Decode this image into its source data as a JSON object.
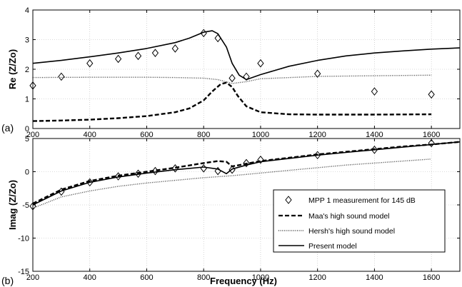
{
  "chart_data": [
    {
      "type": "line",
      "panel_label": "(a)",
      "ylabel": "Re (Z/Zo)",
      "xlabel": "",
      "xlim": [
        200,
        1700
      ],
      "ylim": [
        0,
        4
      ],
      "xticks": [
        200,
        400,
        600,
        800,
        1000,
        1200,
        1400,
        1600
      ],
      "yticks": [
        0,
        1,
        2,
        3,
        4
      ],
      "grid": true,
      "series": [
        {
          "name": "MPP 1 measurement for 145 dB",
          "style": "diamond",
          "x": [
            200,
            300,
            400,
            500,
            570,
            630,
            700,
            800,
            850,
            900,
            950,
            1000,
            1200,
            1400,
            1600
          ],
          "y": [
            1.45,
            1.75,
            2.2,
            2.35,
            2.45,
            2.55,
            2.7,
            3.22,
            3.05,
            1.7,
            1.75,
            2.2,
            1.85,
            1.25,
            1.15
          ]
        },
        {
          "name": "Maa's high sound model",
          "style": "dashed",
          "x": [
            200,
            300,
            400,
            500,
            600,
            700,
            750,
            800,
            830,
            860,
            880,
            900,
            920,
            950,
            1000,
            1100,
            1200,
            1400,
            1600
          ],
          "y": [
            0.25,
            0.27,
            0.3,
            0.35,
            0.42,
            0.55,
            0.68,
            0.95,
            1.25,
            1.5,
            1.55,
            1.4,
            1.1,
            0.75,
            0.55,
            0.48,
            0.47,
            0.47,
            0.48
          ]
        },
        {
          "name": "Hersh's high sound model",
          "style": "dotted",
          "x": [
            200,
            400,
            600,
            700,
            800,
            850,
            900,
            950,
            1000,
            1200,
            1400,
            1600
          ],
          "y": [
            1.72,
            1.73,
            1.73,
            1.72,
            1.7,
            1.65,
            1.52,
            1.58,
            1.68,
            1.76,
            1.78,
            1.8
          ]
        },
        {
          "name": "Present model",
          "style": "solid",
          "x": [
            200,
            300,
            400,
            500,
            600,
            700,
            750,
            800,
            830,
            850,
            880,
            900,
            925,
            950,
            1000,
            1100,
            1200,
            1300,
            1400,
            1500,
            1600,
            1700
          ],
          "y": [
            2.2,
            2.3,
            2.42,
            2.55,
            2.7,
            2.9,
            3.05,
            3.25,
            3.3,
            3.2,
            2.75,
            2.2,
            1.8,
            1.65,
            1.82,
            2.1,
            2.3,
            2.45,
            2.55,
            2.62,
            2.68,
            2.72
          ]
        }
      ]
    },
    {
      "type": "line",
      "panel_label": "(b)",
      "ylabel": "Imag (Z/Zo)",
      "xlabel": "Frequency (Hz)",
      "xlim": [
        200,
        1700
      ],
      "ylim": [
        -15,
        5
      ],
      "xticks": [
        200,
        400,
        600,
        800,
        1000,
        1200,
        1400,
        1600
      ],
      "yticks": [
        -15,
        -10,
        -5,
        0,
        5
      ],
      "grid": true,
      "legend_position": "lower-right",
      "series": [
        {
          "name": "MPP 1 measurement for 145 dB",
          "style": "diamond",
          "x": [
            200,
            300,
            400,
            500,
            570,
            630,
            700,
            800,
            850,
            900,
            950,
            1000,
            1200,
            1400,
            1600
          ],
          "y": [
            -5.2,
            -3.0,
            -1.6,
            -0.7,
            -0.3,
            0.1,
            0.5,
            0.5,
            0.1,
            0.3,
            1.3,
            1.8,
            2.5,
            3.3,
            4.3
          ]
        },
        {
          "name": "Maa's high sound model",
          "style": "dashed",
          "x": [
            200,
            300,
            400,
            500,
            600,
            700,
            800,
            850,
            880,
            900,
            950,
            1000,
            1100,
            1200,
            1300,
            1400,
            1500,
            1600,
            1700
          ],
          "y": [
            -4.8,
            -2.7,
            -1.4,
            -0.6,
            0.0,
            0.6,
            1.3,
            1.6,
            1.5,
            0.8,
            1.2,
            1.6,
            2.1,
            2.6,
            3.0,
            3.4,
            3.8,
            4.1,
            4.5
          ]
        },
        {
          "name": "Hersh's high sound model",
          "style": "dotted",
          "x": [
            200,
            300,
            400,
            500,
            600,
            700,
            800,
            900,
            1000,
            1100,
            1200,
            1300,
            1400,
            1500,
            1600
          ],
          "y": [
            -5.5,
            -3.8,
            -2.9,
            -2.2,
            -1.7,
            -1.3,
            -0.9,
            -0.6,
            -0.2,
            0.2,
            0.6,
            1.0,
            1.3,
            1.6,
            1.9
          ]
        },
        {
          "name": "Present model",
          "style": "solid",
          "x": [
            200,
            300,
            400,
            500,
            600,
            700,
            800,
            850,
            880,
            900,
            950,
            1000,
            1100,
            1200,
            1300,
            1400,
            1500,
            1600,
            1700
          ],
          "y": [
            -5.0,
            -2.9,
            -1.6,
            -0.8,
            -0.2,
            0.3,
            0.7,
            0.4,
            -0.3,
            0.4,
            1.0,
            1.5,
            2.0,
            2.5,
            2.9,
            3.3,
            3.7,
            4.1,
            4.5
          ]
        }
      ]
    }
  ]
}
